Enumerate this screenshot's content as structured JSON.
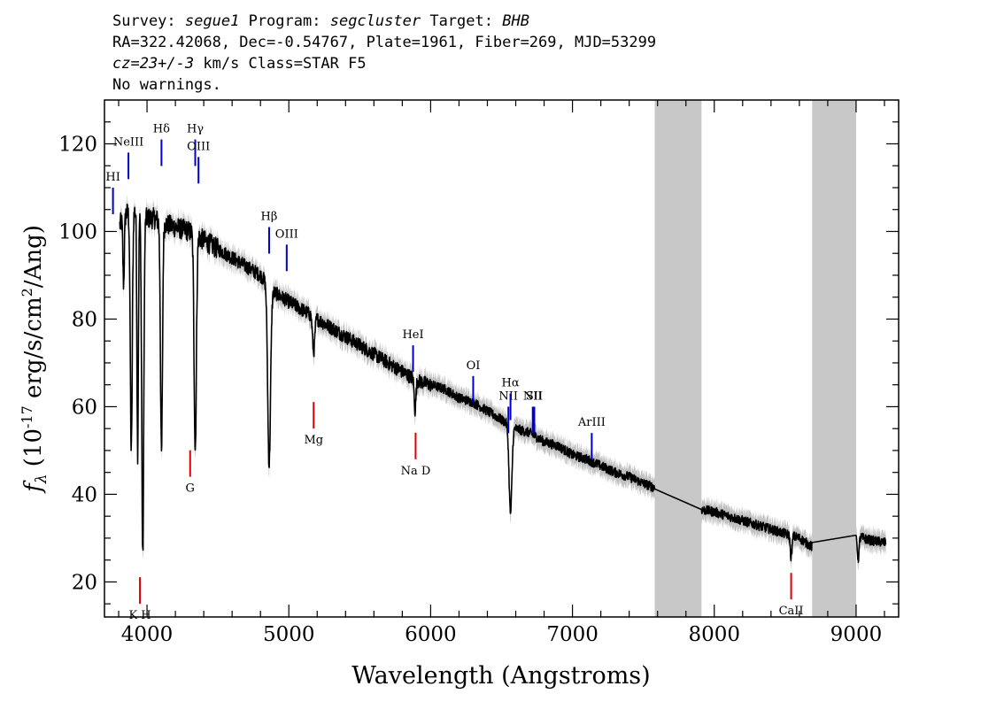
{
  "header": {
    "survey_label": "Survey:",
    "survey": "segue1",
    "program_label": "Program:",
    "program": "segcluster",
    "target_label": "Target:",
    "target": "BHB",
    "line2": "RA=322.42068, Dec=-0.54767, Plate=1961, Fiber=269, MJD=53299",
    "redshift": "cz=23+/-3",
    "redshift_unit": " km/s Class=STAR F5",
    "warnings": "No warnings."
  },
  "chart_data": {
    "type": "line",
    "xlabel": "Wavelength (Angstroms)",
    "ylabel_main": "f",
    "ylabel_sub": "λ",
    "ylabel_rest": " (10",
    "ylabel_exp": "-17",
    "ylabel_rest2": " erg/s/cm",
    "ylabel_exp2": "2",
    "ylabel_rest3": "/Ang)",
    "xlim": [
      3700,
      9300
    ],
    "ylim": [
      12,
      130
    ],
    "x_ticks": [
      4000,
      5000,
      6000,
      7000,
      8000,
      9000
    ],
    "y_ticks": [
      20,
      40,
      60,
      80,
      100,
      120
    ],
    "masked_regions": [
      [
        7580,
        7910
      ],
      [
        8690,
        9000
      ]
    ],
    "colors": {
      "spectrum": "#000000",
      "error": "#c0c0c0",
      "mask": "#c8c8c8",
      "emission": "#0000cc",
      "absorption": "#dd0000"
    },
    "spectrum": {
      "continuum": [
        [
          3800,
          101
        ],
        [
          3850,
          104
        ],
        [
          3900,
          105
        ],
        [
          3950,
          104
        ],
        [
          4000,
          103
        ],
        [
          4050,
          103
        ],
        [
          4100,
          102
        ],
        [
          4200,
          101
        ],
        [
          4300,
          100
        ],
        [
          4400,
          98
        ],
        [
          4500,
          96
        ],
        [
          4600,
          94
        ],
        [
          4700,
          92
        ],
        [
          4800,
          90
        ],
        [
          4900,
          86
        ],
        [
          5000,
          84
        ],
        [
          5100,
          82
        ],
        [
          5200,
          80
        ],
        [
          5300,
          78
        ],
        [
          5400,
          76
        ],
        [
          5500,
          74
        ],
        [
          5600,
          72
        ],
        [
          5700,
          70
        ],
        [
          5800,
          68
        ],
        [
          5900,
          66
        ],
        [
          6000,
          65
        ],
        [
          6100,
          64
        ],
        [
          6200,
          62
        ],
        [
          6300,
          61
        ],
        [
          6400,
          59
        ],
        [
          6500,
          57
        ],
        [
          6600,
          55
        ],
        [
          6700,
          54
        ],
        [
          6800,
          52
        ],
        [
          6900,
          51
        ],
        [
          7000,
          49
        ],
        [
          7100,
          48
        ],
        [
          7200,
          46.5
        ],
        [
          7300,
          45
        ],
        [
          7400,
          44
        ],
        [
          7500,
          42.5
        ],
        [
          7580,
          41.5
        ],
        [
          7910,
          36.5
        ],
        [
          8000,
          36
        ],
        [
          8100,
          35
        ],
        [
          8200,
          34
        ],
        [
          8300,
          33
        ],
        [
          8400,
          32
        ],
        [
          8500,
          31
        ],
        [
          8600,
          30
        ],
        [
          8690,
          28
        ],
        [
          9000,
          30.5
        ],
        [
          9100,
          29.5
        ],
        [
          9200,
          29
        ]
      ],
      "absorption_dips": [
        {
          "center": 3835,
          "depth": 15,
          "width": 5
        },
        {
          "center": 3889,
          "depth": 55,
          "width": 7
        },
        {
          "center": 3934,
          "depth": 55,
          "width": 5
        },
        {
          "center": 3970,
          "depth": 78,
          "width": 7
        },
        {
          "center": 4102,
          "depth": 53,
          "width": 7
        },
        {
          "center": 4340,
          "depth": 49,
          "width": 8
        },
        {
          "center": 4861,
          "depth": 41,
          "width": 10
        },
        {
          "center": 5175,
          "depth": 8,
          "width": 8
        },
        {
          "center": 5890,
          "depth": 7,
          "width": 6
        },
        {
          "center": 6563,
          "depth": 20,
          "width": 10
        },
        {
          "center": 8542,
          "depth": 5,
          "width": 6
        },
        {
          "center": 9015,
          "depth": 5,
          "width": 6
        }
      ]
    },
    "emission_lines": [
      {
        "label": "HI",
        "x": 3760,
        "y": 110
      },
      {
        "label": "NeIII",
        "x": 3869,
        "y": 118
      },
      {
        "label": "Hδ",
        "x": 4102,
        "y": 121
      },
      {
        "label": "Hγ",
        "x": 4340,
        "y": 121
      },
      {
        "label": "OIII",
        "x": 4363,
        "y": 117
      },
      {
        "label": "Hβ",
        "x": 4861,
        "y": 101
      },
      {
        "label": "OIII",
        "x": 4985,
        "y": 97
      },
      {
        "label": "HeI",
        "x": 5876,
        "y": 74
      },
      {
        "label": "OI",
        "x": 6300,
        "y": 67
      },
      {
        "label": "NII",
        "x": 6548,
        "y": 60
      },
      {
        "label": "Hα",
        "x": 6563,
        "y": 63
      },
      {
        "label": "NII",
        "x": 6720,
        "y": 60
      },
      {
        "label": "SII",
        "x": 6731,
        "y": 60
      },
      {
        "label": "ArIII",
        "x": 7136,
        "y": 54
      }
    ],
    "absorption_lines": [
      {
        "label": "K H",
        "x": 3950,
        "y": 15
      },
      {
        "label": "G",
        "x": 4304,
        "y": 44
      },
      {
        "label": "Mg",
        "x": 5175,
        "y": 55
      },
      {
        "label": "Na D",
        "x": 5894,
        "y": 48
      },
      {
        "label": "CaII",
        "x": 8542,
        "y": 16
      }
    ]
  }
}
